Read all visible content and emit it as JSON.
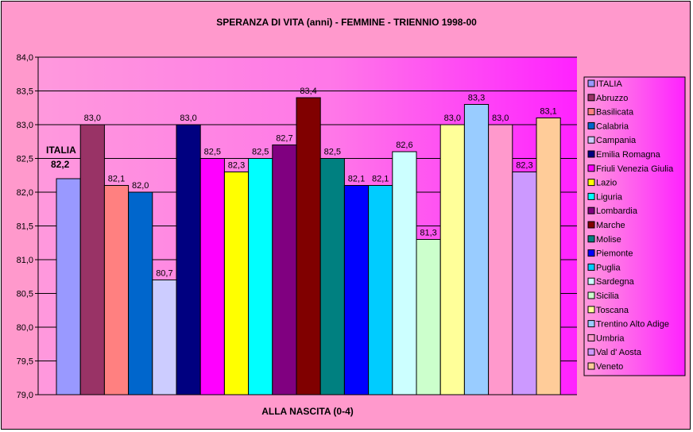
{
  "chart_data": {
    "type": "bar",
    "title": "SPERANZA DI VITA (anni) - FEMMINE - TRIENNIO 1998-00",
    "xlabel": "ALLA NASCITA (0-4)",
    "ylabel": "",
    "ylim": [
      79.0,
      84.0
    ],
    "ytick_step": 0.5,
    "yticks": [
      "79,0",
      "79,5",
      "80,0",
      "80,5",
      "81,0",
      "81,5",
      "82,0",
      "82,5",
      "83,0",
      "83,5",
      "84,0"
    ],
    "grid": true,
    "legend_position": "right",
    "annotation": {
      "label": "ITALIA",
      "value": "82,2"
    },
    "series": [
      {
        "name": "ITALIA",
        "value": 82.2,
        "label": "",
        "color": "#9999ff"
      },
      {
        "name": "Abruzzo",
        "value": 83.0,
        "label": "83,0",
        "color": "#993366"
      },
      {
        "name": "Basilicata",
        "value": 82.1,
        "label": "82,1",
        "color": "#ff8080"
      },
      {
        "name": "Calabria",
        "value": 82.0,
        "label": "82,0",
        "color": "#0066cc"
      },
      {
        "name": "Campania",
        "value": 80.7,
        "label": "80,7",
        "color": "#ccccff"
      },
      {
        "name": "Emilia Romagna",
        "value": 83.0,
        "label": "83,0",
        "color": "#000080"
      },
      {
        "name": "Friuli Venezia Giulia",
        "value": 82.5,
        "label": "82,5",
        "color": "#ff00ff"
      },
      {
        "name": "Lazio",
        "value": 82.3,
        "label": "82,3",
        "color": "#ffff00"
      },
      {
        "name": "Liguria",
        "value": 82.5,
        "label": "82,5",
        "color": "#00ffff"
      },
      {
        "name": "Lombardia",
        "value": 82.7,
        "label": "82,7",
        "color": "#800080"
      },
      {
        "name": "Marche",
        "value": 83.4,
        "label": "83,4",
        "color": "#800000"
      },
      {
        "name": "Molise",
        "value": 82.5,
        "label": "82,5",
        "color": "#008080"
      },
      {
        "name": "Piemonte",
        "value": 82.1,
        "label": "82,1",
        "color": "#0000ff"
      },
      {
        "name": "Puglia",
        "value": 82.1,
        "label": "82,1",
        "color": "#00ccff"
      },
      {
        "name": "Sardegna",
        "value": 82.6,
        "label": "82,6",
        "color": "#ccffff"
      },
      {
        "name": "Sicilia",
        "value": 81.3,
        "label": "81,3",
        "color": "#ccffcc"
      },
      {
        "name": "Toscana",
        "value": 83.0,
        "label": "83,0",
        "color": "#ffff99"
      },
      {
        "name": "Trentino Alto Adige",
        "value": 83.3,
        "label": "83,3",
        "color": "#99ccff"
      },
      {
        "name": "Umbria",
        "value": 83.0,
        "label": "83,0",
        "color": "#ff99cc"
      },
      {
        "name": "Val d' Aosta",
        "value": 82.3,
        "label": "82,3",
        "color": "#cc99ff"
      },
      {
        "name": "Veneto",
        "value": 83.1,
        "label": "83,1",
        "color": "#ffcc99"
      }
    ]
  }
}
